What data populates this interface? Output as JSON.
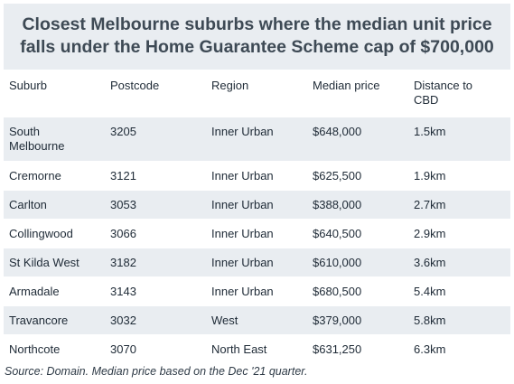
{
  "title": {
    "line1": "Closest Melbourne suburbs where the median unit price",
    "line2": "falls under the Home Guarantee Scheme cap of $700,000"
  },
  "table": {
    "headers": [
      "Suburb",
      "Postcode",
      "Region",
      "Median price",
      "Distance to CBD"
    ],
    "rows": [
      [
        "South Melbourne",
        "3205",
        "Inner Urban",
        "$648,000",
        "1.5km"
      ],
      [
        "Cremorne",
        "3121",
        "Inner Urban",
        "$625,500",
        "1.9km"
      ],
      [
        "Carlton",
        "3053",
        "Inner Urban",
        "$388,000",
        "2.7km"
      ],
      [
        "Collingwood",
        "3066",
        "Inner Urban",
        "$640,500",
        "2.9km"
      ],
      [
        "St Kilda West",
        "3182",
        "Inner Urban",
        "$610,000",
        "3.6km"
      ],
      [
        "Armadale",
        "3143",
        "Inner Urban",
        "$680,500",
        "5.4km"
      ],
      [
        "Travancore",
        "3032",
        "West",
        "$379,000",
        "5.8km"
      ],
      [
        "Northcote",
        "3070",
        "North East",
        "$631,250",
        "6.3km"
      ]
    ]
  },
  "source": "Source: Domain. Median price based on the Dec '21 quarter."
}
